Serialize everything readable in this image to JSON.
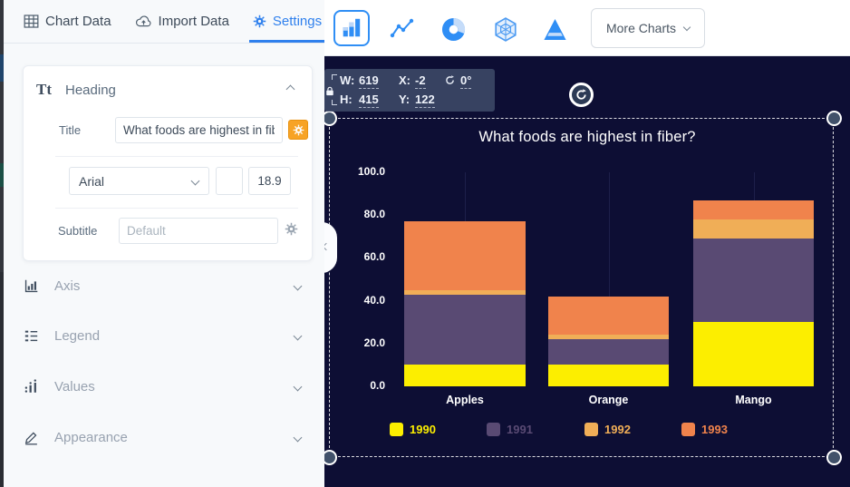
{
  "colors": {
    "accent_blue": "#2f80ed",
    "canvas_bg": "#0d0e34",
    "gear_highlight": "#f7a325"
  },
  "icons": {
    "chart-data": "table-grid-icon",
    "import-data": "cloud-upload-icon",
    "settings": "gear-icon",
    "heading": "Tt",
    "axis": "bar-axis-icon",
    "legend": "list-icon",
    "values": "dots-bars-icon",
    "appearance": "pencil-icon",
    "rotate": "circular-arrow-icon",
    "lock": "padlock-icon"
  },
  "left_panel": {
    "tabs": [
      {
        "label": "Chart Data",
        "active": false
      },
      {
        "label": "Import Data",
        "active": false
      },
      {
        "label": "Settings",
        "active": true
      }
    ],
    "heading": {
      "label": "Heading",
      "title_label": "Title",
      "title_value": "What foods are highest in fiber?",
      "font_family": "Arial",
      "font_size": "18.9",
      "subtitle_label": "Subtitle",
      "subtitle_placeholder": "Default"
    },
    "sections": [
      {
        "label": "Axis"
      },
      {
        "label": "Legend"
      },
      {
        "label": "Values"
      },
      {
        "label": "Appearance"
      }
    ]
  },
  "toolbar": {
    "chart_types": [
      "bar",
      "line",
      "donut",
      "radar",
      "pyramid"
    ],
    "selected_type": "bar",
    "more_charts_label": "More Charts"
  },
  "canvas": {
    "transform_box": {
      "w_label": "W:",
      "w_value": "619",
      "x_label": "X:",
      "x_value": "-2",
      "rotation_value": "0°",
      "h_label": "H:",
      "h_value": "415",
      "y_label": "Y:",
      "y_value": "122"
    }
  },
  "chart_data": {
    "type": "bar",
    "stacked": true,
    "title": "What foods are highest in fiber?",
    "categories": [
      "Apples",
      "Orange",
      "Mango"
    ],
    "series": [
      {
        "name": "1990",
        "color": "#fcee00",
        "values": [
          10,
          10,
          30
        ]
      },
      {
        "name": "1991",
        "color": "#594a73",
        "values": [
          33,
          12,
          39
        ]
      },
      {
        "name": "1992",
        "color": "#f0ae57",
        "values": [
          2,
          2,
          9
        ]
      },
      {
        "name": "1993",
        "color": "#f0834c",
        "values": [
          32,
          18,
          9
        ]
      }
    ],
    "ylim": [
      0,
      100
    ],
    "yticks": [
      0,
      20,
      40,
      60,
      80,
      100
    ],
    "ytick_labels": [
      "0.0",
      "20.0",
      "40.0",
      "60.0",
      "80.0",
      "100.0"
    ],
    "grid": "faint-vertical",
    "legend_position": "bottom"
  }
}
